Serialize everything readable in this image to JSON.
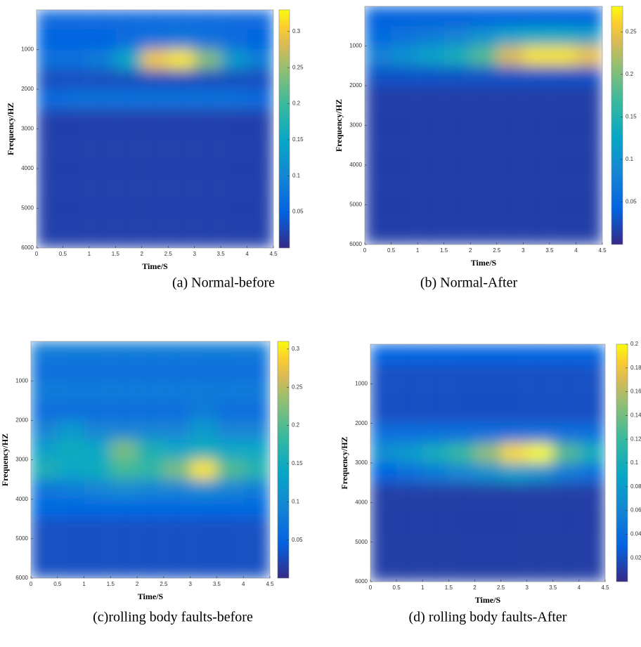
{
  "chart_data": [
    {
      "type": "heatmap",
      "caption": "(a)  Normal-before",
      "xlabel": "Time/S",
      "ylabel": "Frequency/HZ",
      "x": [
        0.25,
        0.75,
        1.25,
        1.75,
        2.25,
        2.75,
        3.25,
        3.75,
        4.25
      ],
      "y": [
        250,
        750,
        1250,
        1750,
        2250,
        2750,
        3250,
        3750,
        4250,
        4750,
        5250,
        5750
      ],
      "z": [
        [
          0.06,
          0.06,
          0.06,
          0.06,
          0.06,
          0.06,
          0.06,
          0.06,
          0.06
        ],
        [
          0.05,
          0.05,
          0.05,
          0.06,
          0.07,
          0.08,
          0.07,
          0.06,
          0.05
        ],
        [
          0.07,
          0.07,
          0.09,
          0.15,
          0.3,
          0.32,
          0.24,
          0.13,
          0.09
        ],
        [
          0.03,
          0.03,
          0.03,
          0.03,
          0.03,
          0.03,
          0.03,
          0.03,
          0.03
        ],
        [
          0.06,
          0.07,
          0.07,
          0.07,
          0.07,
          0.07,
          0.07,
          0.07,
          0.06
        ],
        [
          0.02,
          0.02,
          0.02,
          0.02,
          0.02,
          0.02,
          0.02,
          0.02,
          0.02
        ],
        [
          0.02,
          0.02,
          0.02,
          0.02,
          0.02,
          0.02,
          0.02,
          0.02,
          0.02
        ],
        [
          0.02,
          0.02,
          0.02,
          0.02,
          0.02,
          0.02,
          0.02,
          0.02,
          0.02
        ],
        [
          0.02,
          0.02,
          0.02,
          0.02,
          0.02,
          0.02,
          0.02,
          0.02,
          0.02
        ],
        [
          0.02,
          0.02,
          0.02,
          0.02,
          0.02,
          0.02,
          0.02,
          0.02,
          0.02
        ],
        [
          0.02,
          0.02,
          0.02,
          0.02,
          0.02,
          0.02,
          0.02,
          0.02,
          0.02
        ],
        [
          0.02,
          0.02,
          0.02,
          0.02,
          0.02,
          0.02,
          0.02,
          0.02,
          0.02
        ]
      ],
      "xlim": [
        0,
        4.5
      ],
      "ylim": [
        0,
        6000
      ],
      "y_reversed": true,
      "xticks": [
        0,
        0.5,
        1,
        1.5,
        2,
        2.5,
        3,
        3.5,
        4,
        4.5
      ],
      "yticks": [
        1000,
        2000,
        3000,
        4000,
        5000,
        6000
      ],
      "clim": [
        0,
        0.33
      ],
      "cticks": [
        0.05,
        0.1,
        0.15,
        0.2,
        0.25,
        0.3
      ]
    },
    {
      "type": "heatmap",
      "caption": "(b) Normal-After",
      "xlabel": "Time/S",
      "ylabel": "Frequency/HZ",
      "x": [
        0.25,
        0.75,
        1.25,
        1.75,
        2.25,
        2.75,
        3.25,
        3.75,
        4.25
      ],
      "y": [
        250,
        750,
        1250,
        1750,
        2250,
        2750,
        3250,
        3750,
        4250,
        4750,
        5250,
        5750
      ],
      "z": [
        [
          0.04,
          0.04,
          0.04,
          0.04,
          0.04,
          0.04,
          0.04,
          0.04,
          0.04
        ],
        [
          0.05,
          0.06,
          0.07,
          0.08,
          0.1,
          0.12,
          0.13,
          0.13,
          0.12
        ],
        [
          0.08,
          0.1,
          0.12,
          0.14,
          0.18,
          0.24,
          0.27,
          0.27,
          0.25
        ],
        [
          0.03,
          0.03,
          0.03,
          0.03,
          0.03,
          0.03,
          0.03,
          0.03,
          0.03
        ],
        [
          0.015,
          0.015,
          0.015,
          0.015,
          0.015,
          0.015,
          0.015,
          0.015,
          0.015
        ],
        [
          0.015,
          0.015,
          0.015,
          0.015,
          0.015,
          0.015,
          0.015,
          0.015,
          0.015
        ],
        [
          0.015,
          0.015,
          0.015,
          0.015,
          0.015,
          0.015,
          0.015,
          0.015,
          0.015
        ],
        [
          0.015,
          0.015,
          0.015,
          0.015,
          0.015,
          0.015,
          0.015,
          0.015,
          0.015
        ],
        [
          0.015,
          0.015,
          0.015,
          0.015,
          0.015,
          0.015,
          0.015,
          0.015,
          0.015
        ],
        [
          0.015,
          0.015,
          0.015,
          0.015,
          0.015,
          0.015,
          0.015,
          0.015,
          0.015
        ],
        [
          0.015,
          0.015,
          0.015,
          0.015,
          0.015,
          0.015,
          0.015,
          0.015,
          0.015
        ],
        [
          0.015,
          0.015,
          0.015,
          0.015,
          0.015,
          0.015,
          0.015,
          0.015,
          0.015
        ]
      ],
      "xlim": [
        0,
        4.5
      ],
      "ylim": [
        0,
        6000
      ],
      "y_reversed": true,
      "xticks": [
        0,
        0.5,
        1,
        1.5,
        2,
        2.5,
        3,
        3.5,
        4,
        4.5
      ],
      "yticks": [
        1000,
        2000,
        3000,
        4000,
        5000,
        6000
      ],
      "clim": [
        0,
        0.28
      ],
      "cticks": [
        0.05,
        0.1,
        0.15,
        0.2,
        0.25
      ]
    },
    {
      "type": "heatmap",
      "caption": "(c)rolling body faults-before",
      "xlabel": "Time/S",
      "ylabel": "Frequency/HZ",
      "x": [
        0.25,
        0.75,
        1.25,
        1.75,
        2.25,
        2.75,
        3.25,
        3.75,
        4.25
      ],
      "y": [
        250,
        750,
        1250,
        1750,
        2250,
        2750,
        3250,
        3750,
        4250,
        4750,
        5250,
        5750
      ],
      "z": [
        [
          0.08,
          0.08,
          0.08,
          0.08,
          0.08,
          0.08,
          0.08,
          0.08,
          0.08
        ],
        [
          0.06,
          0.06,
          0.06,
          0.06,
          0.06,
          0.06,
          0.06,
          0.06,
          0.06
        ],
        [
          0.08,
          0.08,
          0.08,
          0.08,
          0.08,
          0.08,
          0.08,
          0.08,
          0.08
        ],
        [
          0.06,
          0.06,
          0.06,
          0.06,
          0.06,
          0.06,
          0.08,
          0.06,
          0.06
        ],
        [
          0.09,
          0.12,
          0.09,
          0.09,
          0.09,
          0.09,
          0.12,
          0.09,
          0.09
        ],
        [
          0.13,
          0.15,
          0.14,
          0.22,
          0.16,
          0.14,
          0.15,
          0.14,
          0.14
        ],
        [
          0.16,
          0.14,
          0.15,
          0.19,
          0.18,
          0.22,
          0.3,
          0.2,
          0.17
        ],
        [
          0.07,
          0.08,
          0.09,
          0.1,
          0.09,
          0.09,
          0.1,
          0.09,
          0.08
        ],
        [
          0.05,
          0.05,
          0.05,
          0.05,
          0.05,
          0.05,
          0.05,
          0.05,
          0.05
        ],
        [
          0.03,
          0.03,
          0.03,
          0.03,
          0.03,
          0.03,
          0.03,
          0.03,
          0.03
        ],
        [
          0.03,
          0.03,
          0.03,
          0.03,
          0.03,
          0.03,
          0.03,
          0.03,
          0.03
        ],
        [
          0.03,
          0.03,
          0.03,
          0.03,
          0.03,
          0.03,
          0.03,
          0.03,
          0.03
        ]
      ],
      "xlim": [
        0,
        4.5
      ],
      "ylim": [
        0,
        6000
      ],
      "y_reversed": true,
      "xticks": [
        0,
        0.5,
        1,
        1.5,
        2,
        2.5,
        3,
        3.5,
        4,
        4.5
      ],
      "yticks": [
        1000,
        2000,
        3000,
        4000,
        5000,
        6000
      ],
      "clim": [
        0,
        0.31
      ],
      "cticks": [
        0.05,
        0.1,
        0.15,
        0.2,
        0.25,
        0.3
      ]
    },
    {
      "type": "heatmap",
      "caption": "(d) rolling body faults-After",
      "xlabel": "Time/S",
      "ylabel": "Frequency/HZ",
      "x": [
        0.25,
        0.75,
        1.25,
        1.75,
        2.25,
        2.75,
        3.25,
        3.75,
        4.25
      ],
      "y": [
        250,
        750,
        1250,
        1750,
        2250,
        2750,
        3250,
        3750,
        4250,
        4750,
        5250,
        5750
      ],
      "z": [
        [
          0.03,
          0.03,
          0.03,
          0.03,
          0.03,
          0.03,
          0.03,
          0.03,
          0.03
        ],
        [
          0.02,
          0.02,
          0.02,
          0.02,
          0.02,
          0.02,
          0.02,
          0.02,
          0.02
        ],
        [
          0.02,
          0.02,
          0.02,
          0.02,
          0.02,
          0.02,
          0.02,
          0.02,
          0.02
        ],
        [
          0.02,
          0.02,
          0.02,
          0.02,
          0.02,
          0.02,
          0.02,
          0.02,
          0.02
        ],
        [
          0.04,
          0.04,
          0.04,
          0.04,
          0.04,
          0.04,
          0.04,
          0.04,
          0.04
        ],
        [
          0.07,
          0.08,
          0.1,
          0.12,
          0.15,
          0.19,
          0.2,
          0.13,
          0.1
        ],
        [
          0.03,
          0.04,
          0.05,
          0.06,
          0.07,
          0.08,
          0.07,
          0.05,
          0.04
        ],
        [
          0.01,
          0.01,
          0.01,
          0.01,
          0.01,
          0.01,
          0.01,
          0.01,
          0.01
        ],
        [
          0.01,
          0.01,
          0.01,
          0.01,
          0.01,
          0.01,
          0.01,
          0.01,
          0.01
        ],
        [
          0.01,
          0.01,
          0.01,
          0.01,
          0.01,
          0.01,
          0.01,
          0.01,
          0.01
        ],
        [
          0.01,
          0.01,
          0.01,
          0.01,
          0.01,
          0.01,
          0.01,
          0.01,
          0.01
        ],
        [
          0.01,
          0.01,
          0.01,
          0.01,
          0.01,
          0.01,
          0.01,
          0.01,
          0.01
        ]
      ],
      "xlim": [
        0,
        4.5
      ],
      "ylim": [
        0,
        6000
      ],
      "y_reversed": true,
      "xticks": [
        0,
        0.5,
        1,
        1.5,
        2,
        2.5,
        3,
        3.5,
        4,
        4.5
      ],
      "yticks": [
        1000,
        2000,
        3000,
        4000,
        5000,
        6000
      ],
      "clim": [
        0,
        0.2
      ],
      "cticks": [
        0.02,
        0.04,
        0.06,
        0.08,
        0.1,
        0.12,
        0.14,
        0.16,
        0.18,
        0.2
      ]
    }
  ]
}
